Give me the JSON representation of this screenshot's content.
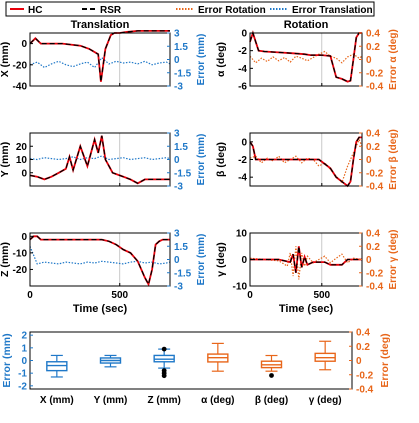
{
  "legend": {
    "items": [
      {
        "label": "HC",
        "color": "#e8000b",
        "style": "solid"
      },
      {
        "label": "RSR",
        "color": "#000000",
        "style": "dashed"
      },
      {
        "label": "Error Rotation",
        "color": "#e8661a",
        "style": "dotted"
      },
      {
        "label": "Error Translation",
        "color": "#1f78c8",
        "style": "dotted"
      }
    ]
  },
  "colors": {
    "hc": "#e8000b",
    "rsr": "#000000",
    "error_rotation": "#e8661a",
    "error_translation": "#1f78c8"
  },
  "chart_data": [
    {
      "type": "line",
      "panel": "X",
      "title": "Translation",
      "ylabel": "X (mm)",
      "y2label": "Error (mm)",
      "xlim": [
        0,
        780
      ],
      "xticks": [
        "0",
        "500"
      ],
      "show_xticks": false,
      "ylim": [
        -40,
        10
      ],
      "yticks": [
        "-40",
        "-20",
        "0"
      ],
      "y2lim": [
        -3,
        3
      ],
      "y2ticks": [
        "-3",
        "-1.5",
        "0",
        "1.5",
        "3"
      ],
      "hc": {
        "x": [
          0,
          30,
          60,
          100,
          180,
          280,
          330,
          380,
          395,
          420,
          450,
          470,
          500,
          540,
          600,
          660,
          700,
          740,
          780
        ],
        "y": [
          0,
          5,
          0,
          0,
          0,
          -2,
          -5,
          -10,
          -36,
          -5,
          8,
          10,
          10,
          11,
          12,
          12,
          12,
          12,
          12
        ]
      },
      "error": {
        "x": [
          0,
          40,
          80,
          120,
          160,
          200,
          240,
          280,
          320,
          360,
          400,
          440,
          480,
          520,
          560,
          600,
          640,
          680,
          720,
          760,
          780
        ],
        "y": [
          -0.6,
          -0.3,
          -0.9,
          -0.5,
          -0.2,
          -0.6,
          -0.8,
          -0.5,
          -0.3,
          -0.9,
          0.2,
          -0.5,
          -0.2,
          -0.4,
          -0.3,
          -0.5,
          -0.2,
          -0.6,
          -0.4,
          -0.3,
          -0.5
        ]
      }
    },
    {
      "type": "line",
      "panel": "alpha",
      "title": "Rotation",
      "ylabel": "α (deg)",
      "y2label": "Error α (deg)",
      "xlim": [
        0,
        780
      ],
      "xticks": [
        "0",
        "500"
      ],
      "show_xticks": false,
      "ylim": [
        -6,
        0
      ],
      "yticks": [
        "-6",
        "-4",
        "-2",
        "0"
      ],
      "y2lim": [
        -0.4,
        0.4
      ],
      "y2ticks": [
        "-0.4",
        "-0.2",
        "0",
        "0.2",
        "0.4"
      ],
      "hc": {
        "x": [
          0,
          20,
          40,
          60,
          100,
          200,
          300,
          380,
          420,
          500,
          560,
          600,
          640,
          680,
          700,
          720,
          740,
          760,
          780
        ],
        "y": [
          -1,
          0,
          -1,
          -2,
          -2.1,
          -2.2,
          -2.3,
          -2.4,
          -2.5,
          -2.5,
          -2.6,
          -5,
          -5.2,
          -5.5,
          -5.4,
          -3,
          -0.5,
          0,
          0
        ]
      },
      "error": {
        "x": [
          0,
          40,
          80,
          120,
          160,
          200,
          240,
          280,
          320,
          360,
          400,
          440,
          480,
          500,
          520,
          560,
          600,
          640,
          680,
          720,
          760,
          780
        ],
        "y": [
          0.05,
          -0.05,
          0.02,
          -0.03,
          0.04,
          -0.02,
          0.03,
          -0.04,
          0.05,
          0.02,
          -0.02,
          0.03,
          0.08,
          0.1,
          0.12,
          0.05,
          0.02,
          -0.05,
          0.04,
          0.08,
          0.02,
          0.05
        ]
      }
    },
    {
      "type": "line",
      "panel": "Y",
      "ylabel": "Y (mm)",
      "y2label": "Error (mm)",
      "xlim": [
        0,
        780
      ],
      "xticks": [
        "0",
        "500"
      ],
      "show_xticks": false,
      "ylim": [
        -10,
        30
      ],
      "yticks": [
        "0",
        "10",
        "20"
      ],
      "y2lim": [
        -3,
        3
      ],
      "y2ticks": [
        "-3",
        "-1.5",
        "0",
        "1.5",
        "3"
      ],
      "hc": {
        "x": [
          0,
          40,
          80,
          120,
          160,
          200,
          220,
          240,
          280,
          320,
          360,
          380,
          400,
          420,
          440,
          460,
          500,
          560,
          600,
          640,
          700,
          780
        ],
        "y": [
          -2,
          -3,
          -5,
          -3,
          0,
          3,
          12,
          2,
          20,
          5,
          25,
          15,
          28,
          10,
          5,
          0,
          -2,
          -5,
          -8,
          -5,
          -5,
          -5
        ]
      },
      "error": {
        "x": [
          0,
          40,
          80,
          120,
          160,
          200,
          240,
          280,
          320,
          360,
          400,
          440,
          480,
          520,
          560,
          600,
          640,
          680,
          720,
          760,
          780
        ],
        "y": [
          0.1,
          0.0,
          0.2,
          0.1,
          0.0,
          0.1,
          0.3,
          0.0,
          0.2,
          0.1,
          0.4,
          0.0,
          0.1,
          0.2,
          0.0,
          0.1,
          0.2,
          0.0,
          0.1,
          0.2,
          0.1
        ]
      }
    },
    {
      "type": "line",
      "panel": "beta",
      "ylabel": "β (deg)",
      "y2label": "Error β (deg)",
      "xlim": [
        0,
        780
      ],
      "xticks": [
        "0",
        "500"
      ],
      "show_xticks": false,
      "ylim": [
        -5,
        1
      ],
      "yticks": [
        "-4",
        "-2",
        "0"
      ],
      "y2lim": [
        -0.4,
        0.4
      ],
      "y2ticks": [
        "-0.4",
        "-0.2",
        "0",
        "0.2",
        "0.4"
      ],
      "hc": {
        "x": [
          0,
          20,
          40,
          60,
          100,
          200,
          300,
          400,
          480,
          520,
          560,
          600,
          640,
          680,
          700,
          720,
          740,
          760,
          780
        ],
        "y": [
          0,
          -0.5,
          -2,
          -2,
          -2,
          -2,
          -2,
          -2,
          -2,
          -2.5,
          -3,
          -4,
          -4.5,
          -5,
          -4.5,
          -2,
          0,
          0.5,
          0.5
        ]
      },
      "error": {
        "x": [
          0,
          40,
          80,
          120,
          160,
          200,
          240,
          280,
          320,
          360,
          400,
          440,
          480,
          520,
          560,
          600,
          640,
          680,
          720,
          760,
          780
        ],
        "y": [
          0.02,
          0.05,
          -0.05,
          0.02,
          -0.02,
          0.05,
          -0.05,
          0.0,
          0.05,
          -0.05,
          0.02,
          0.0,
          -0.1,
          -0.05,
          -0.15,
          -0.25,
          -0.35,
          -0.1,
          0.1,
          0.3,
          0.2
        ]
      }
    },
    {
      "type": "line",
      "panel": "Z",
      "ylabel": "Z (mm)",
      "y2label": "Error (mm)",
      "xlabel": "Time (sec)",
      "xlim": [
        0,
        780
      ],
      "xticks": [
        "0",
        "500"
      ],
      "show_xticks": true,
      "ylim": [
        -30,
        2
      ],
      "yticks": [
        "-20",
        "-10",
        "0"
      ],
      "y2lim": [
        -3,
        3
      ],
      "y2ticks": [
        "-3",
        "-1.5",
        "0",
        "1.5",
        "3"
      ],
      "hc": {
        "x": [
          0,
          20,
          40,
          60,
          100,
          200,
          300,
          400,
          440,
          480,
          520,
          560,
          600,
          640,
          660,
          680,
          700,
          720,
          740,
          780
        ],
        "y": [
          -2,
          0,
          0,
          -2,
          -2,
          -2,
          -2,
          -2,
          -3,
          -5,
          -8,
          -10,
          -15,
          -25,
          -29,
          -20,
          -5,
          -3,
          -2,
          -2
        ]
      },
      "error": {
        "x": [
          0,
          20,
          40,
          60,
          80,
          120,
          160,
          200,
          240,
          280,
          320,
          360,
          400,
          440,
          480,
          520,
          560,
          600,
          640,
          680,
          720,
          760,
          780
        ],
        "y": [
          1.5,
          0.5,
          -0.5,
          -0.4,
          -0.3,
          -0.4,
          -0.5,
          -0.3,
          -0.4,
          -0.5,
          -0.3,
          -0.4,
          -0.2,
          -0.3,
          -0.4,
          -0.5,
          -0.3,
          -0.2,
          -0.4,
          -0.3,
          -0.5,
          -0.4,
          -0.3
        ]
      }
    },
    {
      "type": "line",
      "panel": "gamma",
      "ylabel": "γ (deg)",
      "y2label": "Error γ (deg)",
      "xlabel": "Time (sec)",
      "xlim": [
        0,
        780
      ],
      "xticks": [
        "0",
        "500"
      ],
      "show_xticks": true,
      "ylim": [
        -10,
        10
      ],
      "yticks": [
        "-10",
        "0",
        "10"
      ],
      "y2lim": [
        -0.4,
        0.4
      ],
      "y2ticks": [
        "-0.4",
        "-0.2",
        "0",
        "0.2",
        "0.4"
      ],
      "hc": {
        "x": [
          0,
          100,
          200,
          280,
          300,
          320,
          340,
          360,
          380,
          400,
          440,
          480,
          520,
          560,
          600,
          640,
          680,
          720,
          780
        ],
        "y": [
          0,
          0,
          0,
          -1,
          2,
          -5,
          5,
          -3,
          1,
          -2,
          -1,
          -1,
          -1,
          -2,
          -2,
          -2,
          0,
          0,
          0
        ]
      },
      "error": {
        "x": [
          0,
          100,
          200,
          260,
          280,
          300,
          320,
          340,
          360,
          380,
          400,
          440,
          480,
          520,
          560,
          600,
          640,
          680,
          720,
          780
        ],
        "y": [
          0.02,
          0.0,
          -0.02,
          -0.1,
          0.1,
          -0.25,
          0.2,
          -0.3,
          0.1,
          -0.1,
          0.05,
          -0.05,
          0.0,
          0.05,
          -0.05,
          0.02,
          0.08,
          -0.05,
          0.02,
          0.0
        ]
      }
    },
    {
      "type": "box",
      "ylabel": "Error (mm)",
      "y2label": "Error (deg)",
      "ylim": [
        -2.25,
        2.25
      ],
      "yticks": [
        "-2",
        "-1",
        "0",
        "1",
        "2"
      ],
      "y2lim": [
        -0.4,
        0.4
      ],
      "y2ticks": [
        "-0.4",
        "-0.2",
        "0",
        "0.2",
        "0.4"
      ],
      "categories": [
        "X (mm)",
        "Y (mm)",
        "Z (mm)",
        "α (deg)",
        "β (deg)",
        "γ (deg)"
      ],
      "boxes": [
        {
          "axis": "left",
          "min": -1.3,
          "q1": -0.8,
          "median": -0.4,
          "q3": -0.1,
          "max": 0.4,
          "outliers": []
        },
        {
          "axis": "left",
          "min": -0.5,
          "q1": -0.2,
          "median": 0.0,
          "q3": 0.2,
          "max": 0.4,
          "outliers": []
        },
        {
          "axis": "left",
          "min": -0.6,
          "q1": -0.1,
          "median": 0.1,
          "q3": 0.4,
          "max": 0.9,
          "outliers": [
            0.9,
            -0.8,
            -1.0,
            -1.2
          ]
        },
        {
          "axis": "right",
          "min": -0.15,
          "q1": -0.02,
          "median": 0.04,
          "q3": 0.09,
          "max": 0.24,
          "outliers": []
        },
        {
          "axis": "right",
          "min": -0.15,
          "q1": -0.1,
          "median": -0.06,
          "q3": -0.01,
          "max": 0.07,
          "outliers": [
            -0.21
          ]
        },
        {
          "axis": "right",
          "min": -0.13,
          "q1": -0.01,
          "median": 0.04,
          "q3": 0.1,
          "max": 0.27,
          "outliers": []
        }
      ]
    }
  ]
}
